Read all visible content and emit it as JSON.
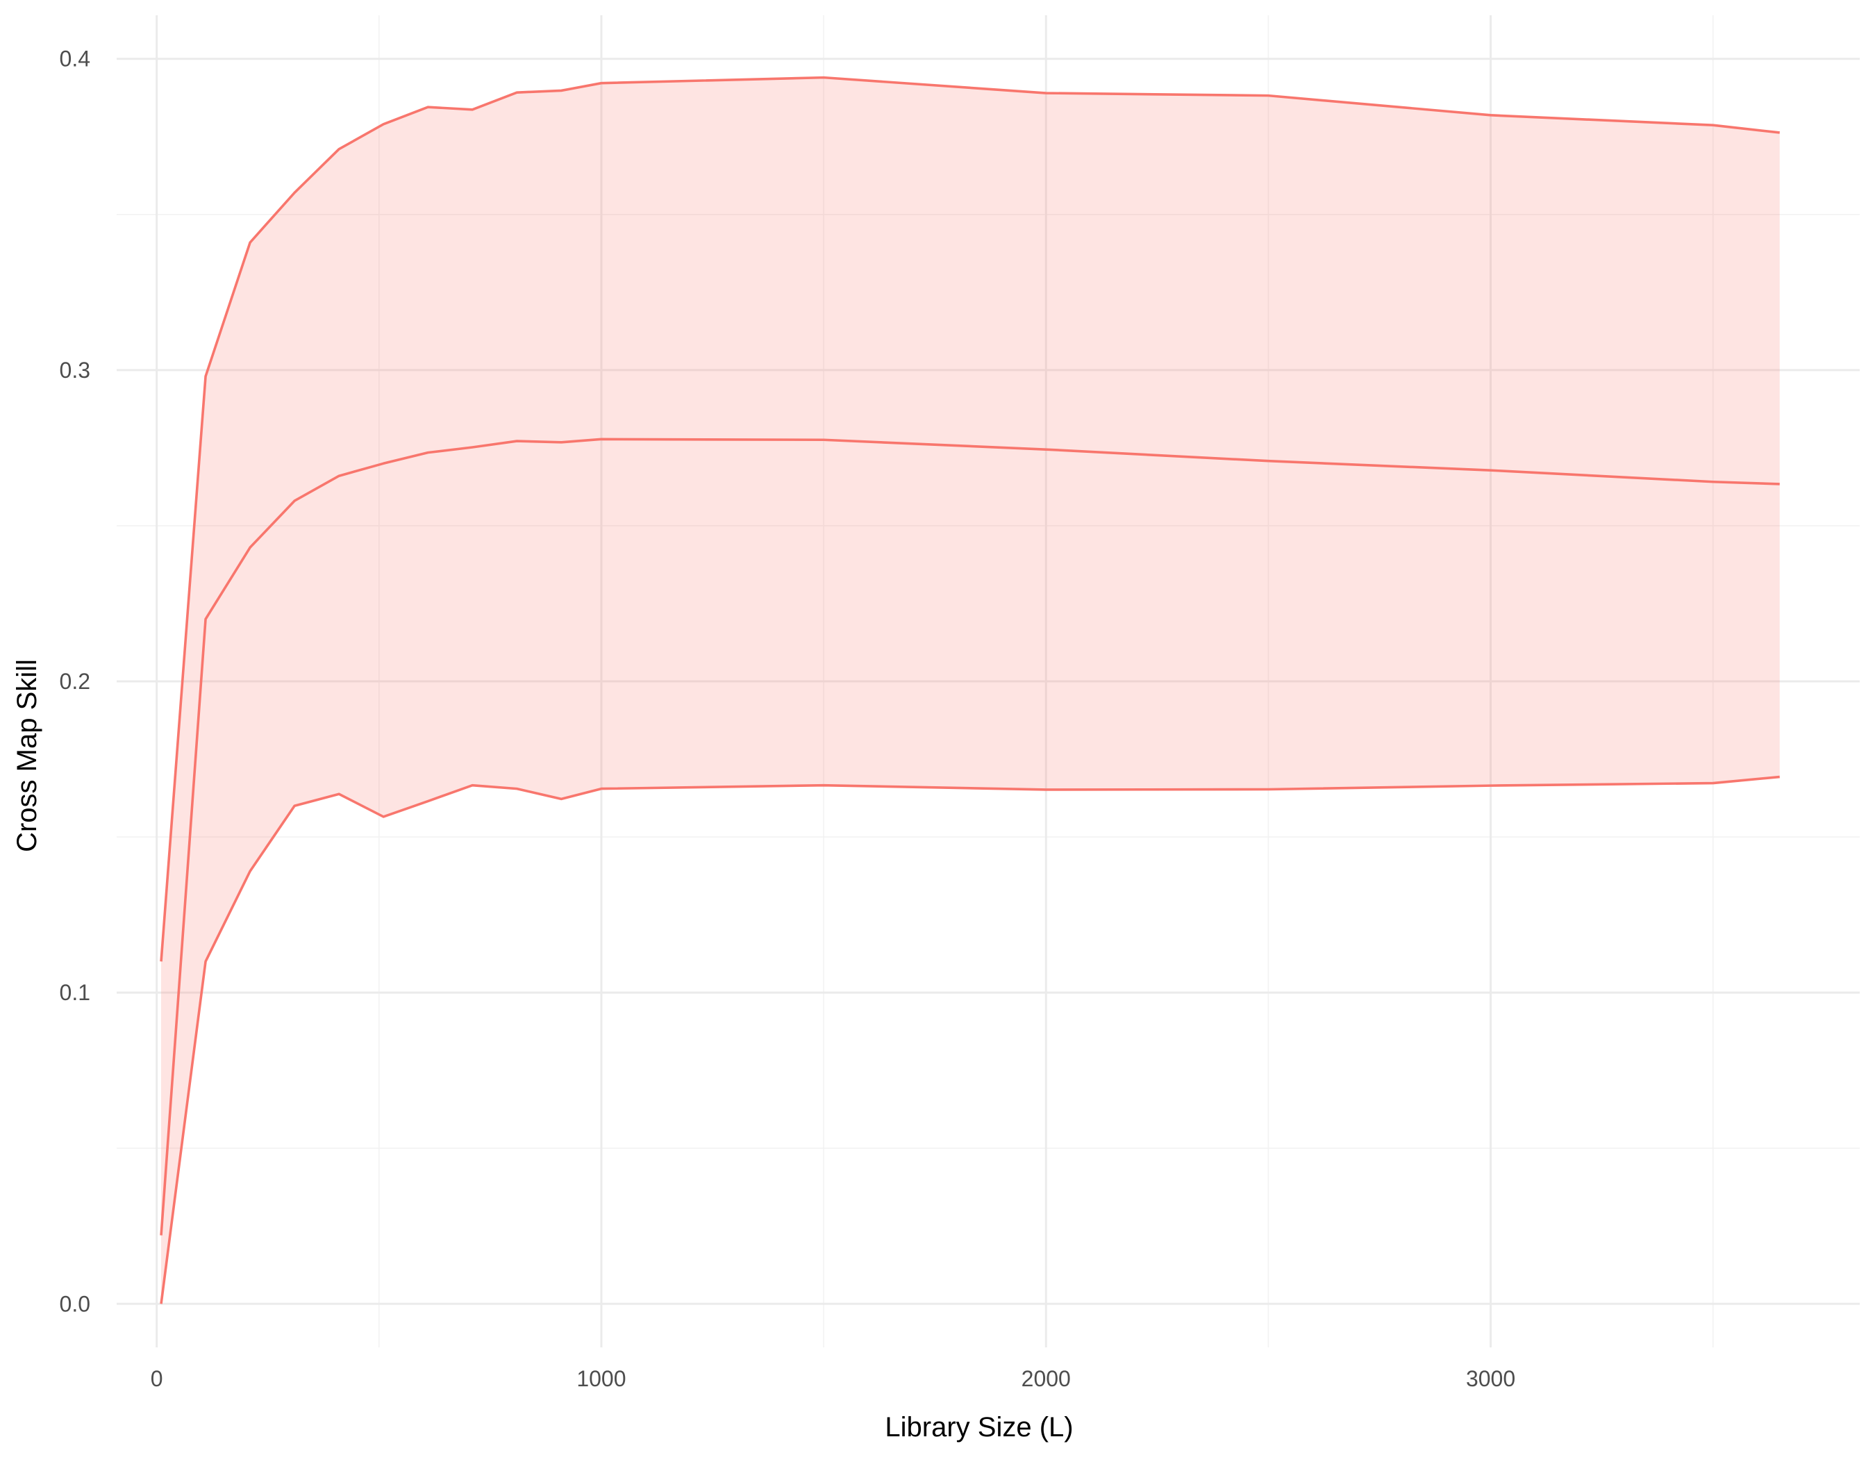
{
  "chart_data": {
    "type": "area",
    "xlabel": "Library Size (L)",
    "ylabel": "Cross Map Skill",
    "xlim": [
      -90,
      3830
    ],
    "ylim": [
      -0.014,
      0.414
    ],
    "x_ticks": [
      0,
      1000,
      2000,
      3000
    ],
    "x_tick_labels": [
      "0",
      "1000",
      "2000",
      "3000"
    ],
    "y_ticks": [
      0.0,
      0.1,
      0.2,
      0.3,
      0.4
    ],
    "y_tick_labels": [
      "0.0",
      "0.1",
      "0.2",
      "0.3",
      "0.4"
    ],
    "grid": true,
    "legend": "none",
    "line_color": "#F8766D",
    "ribbon_color": "#F8766D",
    "ribbon_opacity": 0.2,
    "x": [
      10,
      110,
      210,
      310,
      410,
      510,
      610,
      710,
      810,
      910,
      1000,
      1500,
      2000,
      2500,
      3000,
      3500,
      3650
    ],
    "series": [
      {
        "values": [
          0.022,
          0.22,
          0.243,
          0.258,
          0.266,
          0.27,
          0.2735,
          0.2752,
          0.2772,
          0.2768,
          0.2778,
          0.2776,
          0.2745,
          0.2708,
          0.2678,
          0.2641,
          0.2634
        ]
      },
      {
        "values": [
          0.11,
          0.298,
          0.341,
          0.357,
          0.371,
          0.379,
          0.3845,
          0.3837,
          0.3892,
          0.3898,
          0.3922,
          0.394,
          0.389,
          0.3882,
          0.3819,
          0.3787,
          0.3763
        ]
      },
      {
        "values": [
          0.0,
          0.11,
          0.139,
          0.16,
          0.1638,
          0.1565,
          0.1615,
          0.1666,
          0.1655,
          0.1622,
          0.1655,
          0.1666,
          0.1652,
          0.1653,
          0.1665,
          0.1673,
          0.1693
        ]
      }
    ]
  }
}
